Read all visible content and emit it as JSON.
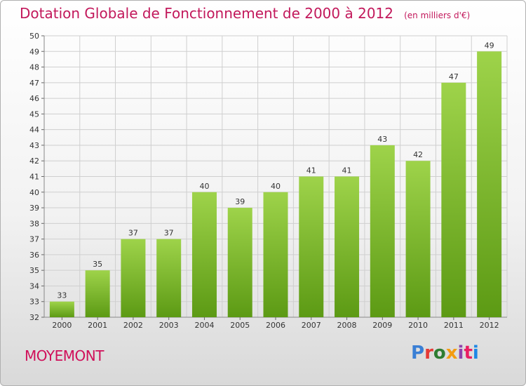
{
  "header": {
    "title": "Dotation Globale de Fonctionnement de 2000 à 2012",
    "unit": "(en milliers d'€)"
  },
  "footer": {
    "commune": "MOYEMONT",
    "logo": "Proxiti",
    "logo_colors": [
      "#3a7fd5",
      "#e53935",
      "#2e7d32",
      "#f39c12",
      "#8e44ad",
      "#e91e63",
      "#1e88e5"
    ]
  },
  "colors": {
    "bar_top": "#9ed34a",
    "bar_bottom": "#5c9a14",
    "grid": "#cfcfcf",
    "axis_text": "#333333",
    "title": "#c2185b"
  },
  "chart_data": {
    "type": "bar",
    "title": "Dotation Globale de Fonctionnement de 2000 à 2012",
    "subtitle": "(en milliers d'€)",
    "xlabel": "",
    "ylabel": "",
    "categories": [
      "2000",
      "2001",
      "2002",
      "2003",
      "2004",
      "2005",
      "2006",
      "2007",
      "2008",
      "2009",
      "2010",
      "2011",
      "2012"
    ],
    "values": [
      33,
      35,
      37,
      37,
      40,
      39,
      40,
      41,
      41,
      43,
      42,
      47,
      49
    ],
    "ylim": [
      32,
      50
    ],
    "yticks": [
      32,
      33,
      34,
      35,
      36,
      37,
      38,
      39,
      40,
      41,
      42,
      43,
      44,
      45,
      46,
      47,
      48,
      49,
      50
    ],
    "grid": true,
    "legend": "none"
  }
}
